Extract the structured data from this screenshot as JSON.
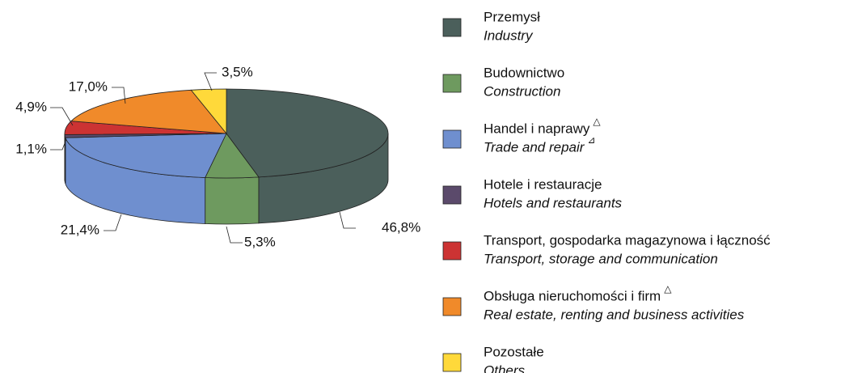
{
  "chart_data": {
    "type": "pie3d",
    "categories": [
      "Przemysł",
      "Budownictwo",
      "Handel i naprawy",
      "Hotele i restauracje",
      "Transport, gospodarka magazynowa i łączność",
      "Obsługa nieruchomości i firm",
      "Pozostałe"
    ],
    "category_marks": [
      null,
      null,
      "△",
      null,
      null,
      "△",
      null
    ],
    "categories_en": [
      "Industry",
      "Construction",
      "Trade and repair",
      "Hotels and restaurants",
      "Transport, storage and communication",
      "Real estate, renting and business activities",
      "Others"
    ],
    "category_en_marks": [
      null,
      null,
      "⊿",
      null,
      null,
      null,
      null
    ],
    "values": [
      46.8,
      5.3,
      21.4,
      1.1,
      4.9,
      17.0,
      3.5
    ],
    "value_labels": [
      "46,8%",
      "5,3%",
      "21,4%",
      "1,1%",
      "4,9%",
      "17,0%",
      "3,5%"
    ],
    "colors": [
      "#4b5f5b",
      "#6e9a5f",
      "#6f8fcf",
      "#5b4a6b",
      "#cc3333",
      "#f08a2a",
      "#ffd93a"
    ],
    "legend": "right"
  }
}
